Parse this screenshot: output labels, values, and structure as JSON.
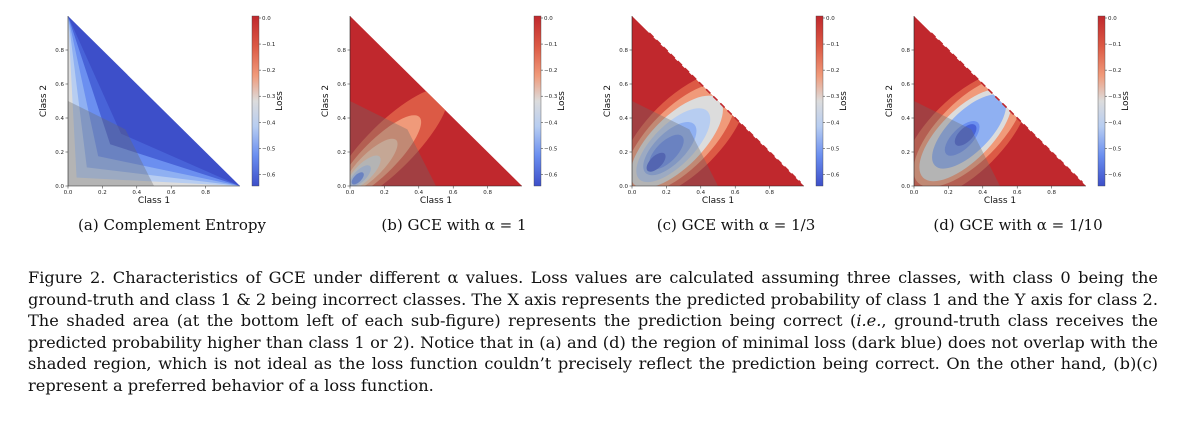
{
  "panels": [
    {
      "id": "a",
      "caption_prefix": "(a)",
      "caption_text": "Complement Entropy",
      "variant": "ce"
    },
    {
      "id": "b",
      "caption_prefix": "(b)",
      "caption_text": "GCE with α = 1",
      "variant": "gce1"
    },
    {
      "id": "c",
      "caption_prefix": "(c)",
      "caption_text": "GCE with α = 1/3",
      "variant": "gce3"
    },
    {
      "id": "d",
      "caption_prefix": "(d)",
      "caption_text": "GCE with α = 1/10",
      "variant": "gce10"
    }
  ],
  "axes": {
    "xlabel": "Class 1",
    "ylabel": "Class 2",
    "x_ticks": [
      "0.0",
      "0.2",
      "0.4",
      "0.6",
      "0.8"
    ],
    "y_ticks": [
      "0.0",
      "0.2",
      "0.4",
      "0.6",
      "0.8"
    ],
    "colorbar_label": "Loss",
    "colorbar_ticks": [
      "0.0",
      "−0.1",
      "−0.2",
      "−0.3",
      "−0.4",
      "−0.5",
      "−0.6"
    ]
  },
  "colors": {
    "deep_red": "#c0282d",
    "red": "#dc5a45",
    "salmon": "#f09a7a",
    "peach": "#f6c8ad",
    "light_gray": "#dcdcdc",
    "light_blue": "#b7cdf1",
    "mid_blue": "#8fb0f2",
    "blue": "#6b8ff0",
    "dark_blue": "#4863d8",
    "deep_blue": "#3d4fc9",
    "shade": "#6a6a6a"
  },
  "caption": {
    "intro": "Figure 2. Characteristics of GCE under different α values.",
    "body_1": " Loss values are calculated assuming three classes, with class 0 being the ground-truth and class 1 & 2 being incorrect classes. The X axis represents the predicted probability of class 1 and the Y axis for class 2. The shaded area (at the bottom left of each sub-figure) represents the prediction being correct (",
    "ie": "i.e.",
    "body_2": ", ground-truth class receives the predicted probability higher than class 1 or 2). Notice that in (a) and (d) the region of minimal loss (dark blue) does not overlap with the shaded region, which is not ideal as the loss function couldn’t precisely reflect the prediction being correct. On the other hand, (b)(c) represent a preferred behavior of a loss function."
  }
}
